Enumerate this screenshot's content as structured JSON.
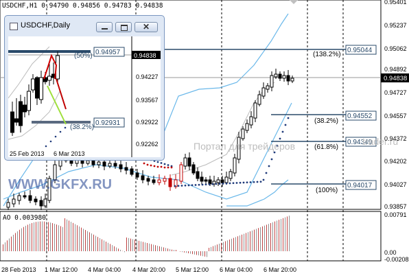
{
  "main_chart": {
    "header": "USDCHF,H1  0.94790 0.94856 0.94783 0.94838",
    "price_axis": [
      "0.95401",
      "0.95237",
      "0.95062",
      "0.94892",
      "0.94727",
      "0.94557",
      "0.94372",
      "0.94202",
      "0.94027",
      "0.93857"
    ],
    "current_price": "0.94838",
    "fibo_levels": [
      {
        "label": "(138.2%)",
        "price": "0.95044"
      },
      {
        "label": "(38.2%)",
        "price": "0.94552"
      },
      {
        "label": "(61.8%)",
        "price": "0.94349"
      },
      {
        "label": "(100%)",
        "price": "0.94017"
      }
    ],
    "watermark": "Портал для трейдеров",
    "watermark2": "WWW.GKFX.RU",
    "watermark_right": "trader.ru"
  },
  "ao": {
    "label": "AO 0.003980",
    "axis": [
      "0.00791",
      "0.00",
      "-0.00208"
    ]
  },
  "time_axis": [
    "28 Feb 2013",
    "1 Mar 12:00",
    "4 Mar 04:00",
    "4 Mar 20:00",
    "5 Mar 12:00",
    "6 Mar 04:00",
    "6 Mar 20:00"
  ],
  "daily_window": {
    "title": "USDCHF,Daily",
    "price_axis": [
      "0.94838",
      "0.94227",
      "0.93567",
      "0.92922",
      "0.92262"
    ],
    "current_price": "0.94838",
    "levels": [
      {
        "label": "(50%)",
        "price": "0.94957"
      },
      {
        "label": "(38.2%)",
        "price": "0.92931"
      }
    ],
    "time_labels": [
      "25 Feb 2013",
      "6 Mar 2013"
    ]
  },
  "colors": {
    "up": "#000000",
    "down": "#c00000",
    "band": "#6ab8ea",
    "sar": "#1f3a7a",
    "level": "#2a4a6a",
    "ao_down": "#c04040",
    "ao_up": "#909090"
  }
}
